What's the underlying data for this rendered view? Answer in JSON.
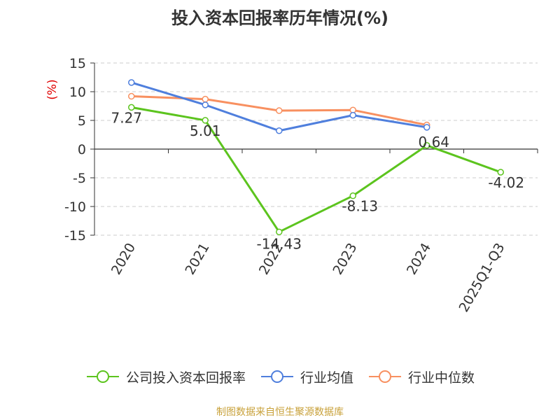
{
  "title": "投入资本回报率历年情况(%)",
  "source": "制图数据来自恒生聚源数据库",
  "colors": {
    "series1": "#5cc41e",
    "series2": "#4f7fdd",
    "series3": "#f89060",
    "grid": "#cccccc",
    "axis": "#333333",
    "unit": "#e00000",
    "text": "#333333"
  },
  "chart_data": {
    "type": "line",
    "categories": [
      "2020",
      "2021",
      "2022",
      "2023",
      "2024",
      "2025Q1-Q3"
    ],
    "ylabel": "(%)",
    "ylim": [
      -15,
      15
    ],
    "yticks": [
      15,
      10,
      5,
      0,
      -5,
      -10,
      -15
    ],
    "grid": "horizontal dashed",
    "legend_position": "bottom",
    "series": [
      {
        "name": "公司投入资本回报率",
        "values": [
          7.27,
          5.01,
          -14.43,
          -8.13,
          0.64,
          -4.02
        ],
        "labels": [
          "7.27",
          "5.01",
          "-14.43",
          "-8.13",
          "0.64",
          "-4.02"
        ]
      },
      {
        "name": "行业均值",
        "values": [
          11.6,
          7.7,
          3.2,
          5.9,
          3.8,
          null
        ]
      },
      {
        "name": "行业中位数",
        "values": [
          9.2,
          8.7,
          6.7,
          6.8,
          4.2,
          null
        ]
      }
    ]
  }
}
